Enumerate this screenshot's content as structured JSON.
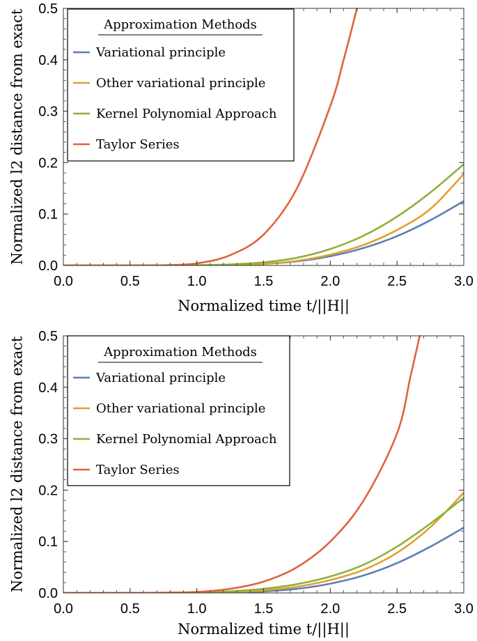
{
  "chart_data": [
    {
      "type": "line",
      "title": "",
      "xlabel": "Normalized time t/||H||",
      "ylabel": "Normalized l2 distance from exact",
      "xlim": [
        0,
        3.0
      ],
      "ylim": [
        0,
        0.5
      ],
      "xticks": [
        "0.0",
        "0.5",
        "1.0",
        "1.5",
        "2.0",
        "2.5",
        "3.0"
      ],
      "yticks": [
        "0.0",
        "0.1",
        "0.2",
        "0.3",
        "0.4",
        "0.5"
      ],
      "legend_title": "Approximation Methods",
      "legend_position": "top-left",
      "grid": false,
      "series": [
        {
          "name": "Variational principle",
          "color": "#5b7fb5",
          "x": [
            0,
            0.5,
            1.0,
            1.25,
            1.5,
            1.75,
            2.0,
            2.25,
            2.5,
            2.75,
            3.0
          ],
          "y": [
            0,
            0,
            0.0003,
            0.001,
            0.003,
            0.008,
            0.018,
            0.034,
            0.057,
            0.088,
            0.125
          ]
        },
        {
          "name": "Other variational principle",
          "color": "#e0a12a",
          "x": [
            0,
            0.5,
            1.0,
            1.25,
            1.5,
            1.75,
            2.0,
            2.25,
            2.5,
            2.75,
            3.0
          ],
          "y": [
            0,
            0,
            0.0003,
            0.001,
            0.003,
            0.009,
            0.021,
            0.04,
            0.069,
            0.11,
            0.178
          ]
        },
        {
          "name": "Kernel Polynomial Approach",
          "color": "#8db13a",
          "x": [
            0,
            0.5,
            1.0,
            1.25,
            1.5,
            1.75,
            2.0,
            2.25,
            2.5,
            2.75,
            3.0
          ],
          "y": [
            0,
            0,
            0.0005,
            0.002,
            0.006,
            0.015,
            0.032,
            0.058,
            0.095,
            0.142,
            0.197
          ]
        },
        {
          "name": "Taylor Series",
          "color": "#e0623a",
          "x": [
            0,
            0.5,
            0.75,
            1.0,
            1.25,
            1.5,
            1.75,
            2.0,
            2.1,
            2.2
          ],
          "y": [
            0,
            0,
            0.0005,
            0.004,
            0.02,
            0.06,
            0.15,
            0.31,
            0.4,
            0.5
          ]
        }
      ]
    },
    {
      "type": "line",
      "title": "",
      "xlabel": "Normalized time t/||H||",
      "ylabel": "Normalized l2 distance from exact",
      "xlim": [
        0,
        3.0
      ],
      "ylim": [
        0,
        0.5
      ],
      "xticks": [
        "0.0",
        "0.5",
        "1.0",
        "1.5",
        "2.0",
        "2.5",
        "3.0"
      ],
      "yticks": [
        "0.0",
        "0.1",
        "0.2",
        "0.3",
        "0.4",
        "0.5"
      ],
      "legend_title": "Approximation Methods",
      "legend_position": "top-left",
      "grid": false,
      "series": [
        {
          "name": "Variational principle",
          "color": "#5b7fb5",
          "x": [
            0,
            0.5,
            1.0,
            1.25,
            1.5,
            1.75,
            2.0,
            2.25,
            2.5,
            2.75,
            3.0
          ],
          "y": [
            0,
            0,
            0.0003,
            0.001,
            0.003,
            0.008,
            0.018,
            0.034,
            0.058,
            0.09,
            0.127
          ]
        },
        {
          "name": "Other variational principle",
          "color": "#e0a12a",
          "x": [
            0,
            0.5,
            1.0,
            1.25,
            1.5,
            1.75,
            2.0,
            2.25,
            2.5,
            2.75,
            3.0
          ],
          "y": [
            0,
            0,
            0.0003,
            0.0015,
            0.005,
            0.012,
            0.025,
            0.045,
            0.078,
            0.128,
            0.195
          ]
        },
        {
          "name": "Kernel Polynomial Approach",
          "color": "#8db13a",
          "x": [
            0,
            0.5,
            1.0,
            1.25,
            1.5,
            1.75,
            2.0,
            2.25,
            2.5,
            2.75,
            3.0
          ],
          "y": [
            0,
            0,
            0.001,
            0.003,
            0.008,
            0.017,
            0.032,
            0.055,
            0.09,
            0.135,
            0.185
          ]
        },
        {
          "name": "Taylor Series",
          "color": "#e0623a",
          "x": [
            0,
            0.5,
            0.75,
            1.0,
            1.25,
            1.5,
            1.75,
            2.0,
            2.25,
            2.5,
            2.6,
            2.67
          ],
          "y": [
            0,
            0,
            0.0005,
            0.002,
            0.008,
            0.022,
            0.05,
            0.1,
            0.18,
            0.31,
            0.42,
            0.5
          ]
        }
      ]
    }
  ]
}
